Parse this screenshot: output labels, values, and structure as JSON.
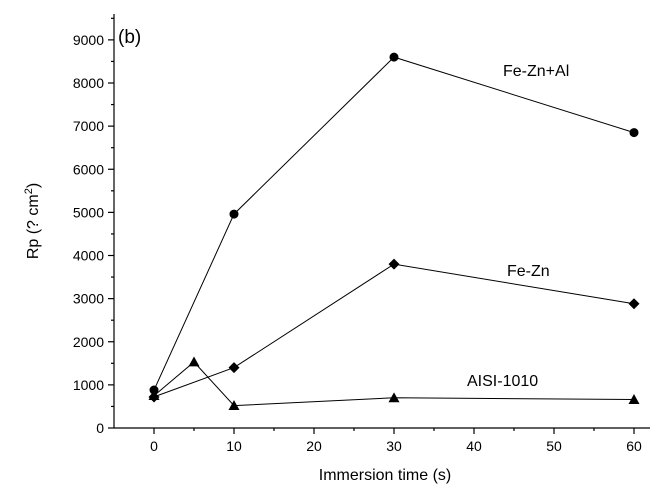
{
  "chart_data": {
    "type": "line",
    "panel_label": "(b)",
    "xlabel": "Immersion time (s)",
    "ylabel": "Rp (? cm",
    "ylabel_superscript": "2",
    "ylabel_close": ")",
    "xlim": [
      -5,
      62
    ],
    "ylim": [
      0,
      9600
    ],
    "x_ticks": [
      0,
      10,
      20,
      30,
      40,
      50,
      60
    ],
    "y_ticks": [
      0,
      1000,
      2000,
      3000,
      4000,
      5000,
      6000,
      7000,
      8000,
      9000
    ],
    "series": [
      {
        "name": "Fe-Zn+Al",
        "marker": "circle",
        "points": [
          [
            0,
            880
          ],
          [
            10,
            4960
          ],
          [
            30,
            8600
          ],
          [
            60,
            6850
          ]
        ]
      },
      {
        "name": "Fe-Zn",
        "marker": "diamond",
        "points": [
          [
            0,
            720
          ],
          [
            10,
            1400
          ],
          [
            30,
            3800
          ],
          [
            60,
            2880
          ]
        ]
      },
      {
        "name": "AISI-1010",
        "marker": "triangle",
        "points": [
          [
            0,
            750
          ],
          [
            5,
            1530
          ],
          [
            10,
            520
          ],
          [
            30,
            700
          ],
          [
            60,
            660
          ]
        ]
      }
    ]
  }
}
